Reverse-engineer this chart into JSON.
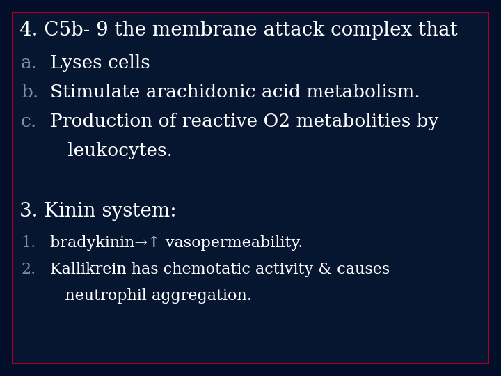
{
  "bg_color": "#020e2a",
  "box_bg_color": "#061530",
  "box_border_color": "#aa0022",
  "text_color_white": "#ffffff",
  "text_color_gray": "#8888aa",
  "title_line": "4. C5b- 9 the membrane attack complex that",
  "items_abc": [
    {
      "label": "a.",
      "text": "Lyses cells"
    },
    {
      "label": "b.",
      "text": "Stimulate arachidonic acid metabolism."
    },
    {
      "label": "c.",
      "text": "Production of reactive O2 metabolities by"
    },
    {
      "label": "",
      "text": "   leukocytes."
    }
  ],
  "section2_title": "3. Kinin system:",
  "items_num": [
    {
      "label": "1.",
      "text": "bradykinin→↑ vasopermeability."
    },
    {
      "label": "2.",
      "text": "Kallikrein has chemotatic activity & causes"
    },
    {
      "label": "",
      "text": "   neutrophil aggregation."
    }
  ],
  "title_fontsize": 20,
  "item_fontsize": 19,
  "section2_fontsize": 20,
  "item2_fontsize": 16
}
